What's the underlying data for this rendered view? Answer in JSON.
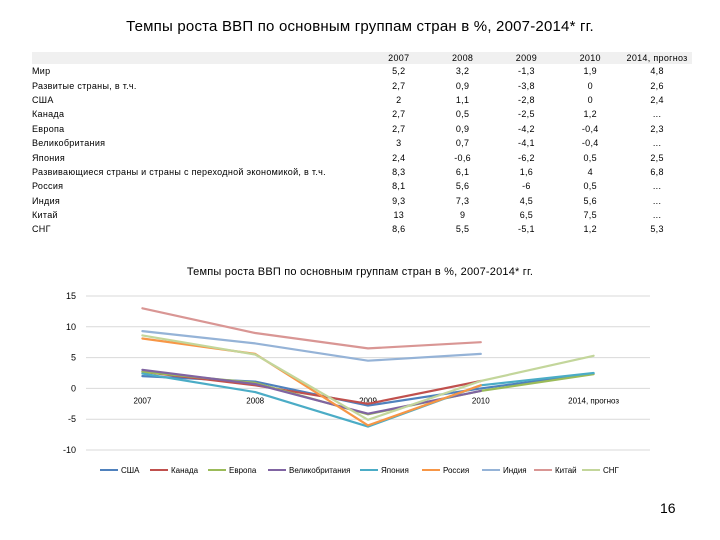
{
  "page": {
    "title": "Темпы роста ВВП по основным группам стран в %, 2007-2014* гг.",
    "page_number": "16"
  },
  "table": {
    "headers": [
      "",
      "2007",
      "2008",
      "2009",
      "2010",
      "2014, прогноз"
    ],
    "rows": [
      [
        "Мир",
        "5,2",
        "3,2",
        "-1,3",
        "1,9",
        "4,8"
      ],
      [
        "Развитые страны, в т.ч.",
        "2,7",
        "0,9",
        "-3,8",
        "0",
        "2,6"
      ],
      [
        "США",
        "2",
        "1,1",
        "-2,8",
        "0",
        "2,4"
      ],
      [
        "Канада",
        "2,7",
        "0,5",
        "-2,5",
        "1,2",
        "..."
      ],
      [
        "Европа",
        "2,7",
        "0,9",
        "-4,2",
        "-0,4",
        "2,3"
      ],
      [
        "Великобритания",
        "3",
        "0,7",
        "-4,1",
        "-0,4",
        "..."
      ],
      [
        "Япония",
        "2,4",
        "-0,6",
        "-6,2",
        "0,5",
        "2,5"
      ],
      [
        "Развивающиеся страны и страны с переходной экономикой, в т.ч.",
        "8,3",
        "6,1",
        "1,6",
        "4",
        "6,8"
      ],
      [
        "Россия",
        "8,1",
        "5,6",
        "-6",
        "0,5",
        "..."
      ],
      [
        "Индия",
        "9,3",
        "7,3",
        "4,5",
        "5,6",
        "..."
      ],
      [
        "Китай",
        "13",
        "9",
        "6,5",
        "7,5",
        "..."
      ],
      [
        "СНГ",
        "8,6",
        "5,5",
        "-5,1",
        "1,2",
        "5,3"
      ]
    ]
  },
  "chart_data": {
    "type": "line",
    "title": "Темпы роста ВВП по основным группам стран в %, 2007-2014* гг.",
    "categories": [
      "2007",
      "2008",
      "2009",
      "2010",
      "2014, прогноз"
    ],
    "ylim": [
      -10,
      15
    ],
    "yticks": [
      -10,
      -5,
      0,
      5,
      10,
      15
    ],
    "grid": "horizontal",
    "legend_position": "bottom",
    "series": [
      {
        "name": "США",
        "color": "#4f81bd",
        "values": [
          2,
          1.1,
          -2.8,
          0,
          2.4
        ]
      },
      {
        "name": "Канада",
        "color": "#c0504d",
        "values": [
          2.7,
          0.5,
          -2.5,
          1.2,
          null
        ]
      },
      {
        "name": "Европа",
        "color": "#9bbb59",
        "values": [
          2.7,
          0.9,
          -4.2,
          -0.4,
          2.3
        ]
      },
      {
        "name": "Великобритания",
        "color": "#8064a2",
        "values": [
          3,
          0.7,
          -4.1,
          -0.4,
          null
        ]
      },
      {
        "name": "Япония",
        "color": "#4bacc6",
        "values": [
          2.4,
          -0.6,
          -6.2,
          0.5,
          2.5
        ]
      },
      {
        "name": "Россия",
        "color": "#f79646",
        "values": [
          8.1,
          5.6,
          -6,
          0.5,
          null
        ]
      },
      {
        "name": "Индия",
        "color": "#95b3d7",
        "values": [
          9.3,
          7.3,
          4.5,
          5.6,
          null
        ]
      },
      {
        "name": "Китай",
        "color": "#d99694",
        "values": [
          13,
          9,
          6.5,
          7.5,
          null
        ]
      },
      {
        "name": "СНГ",
        "color": "#c3d69b",
        "values": [
          8.6,
          5.5,
          -5.1,
          1.2,
          5.3
        ]
      }
    ]
  }
}
